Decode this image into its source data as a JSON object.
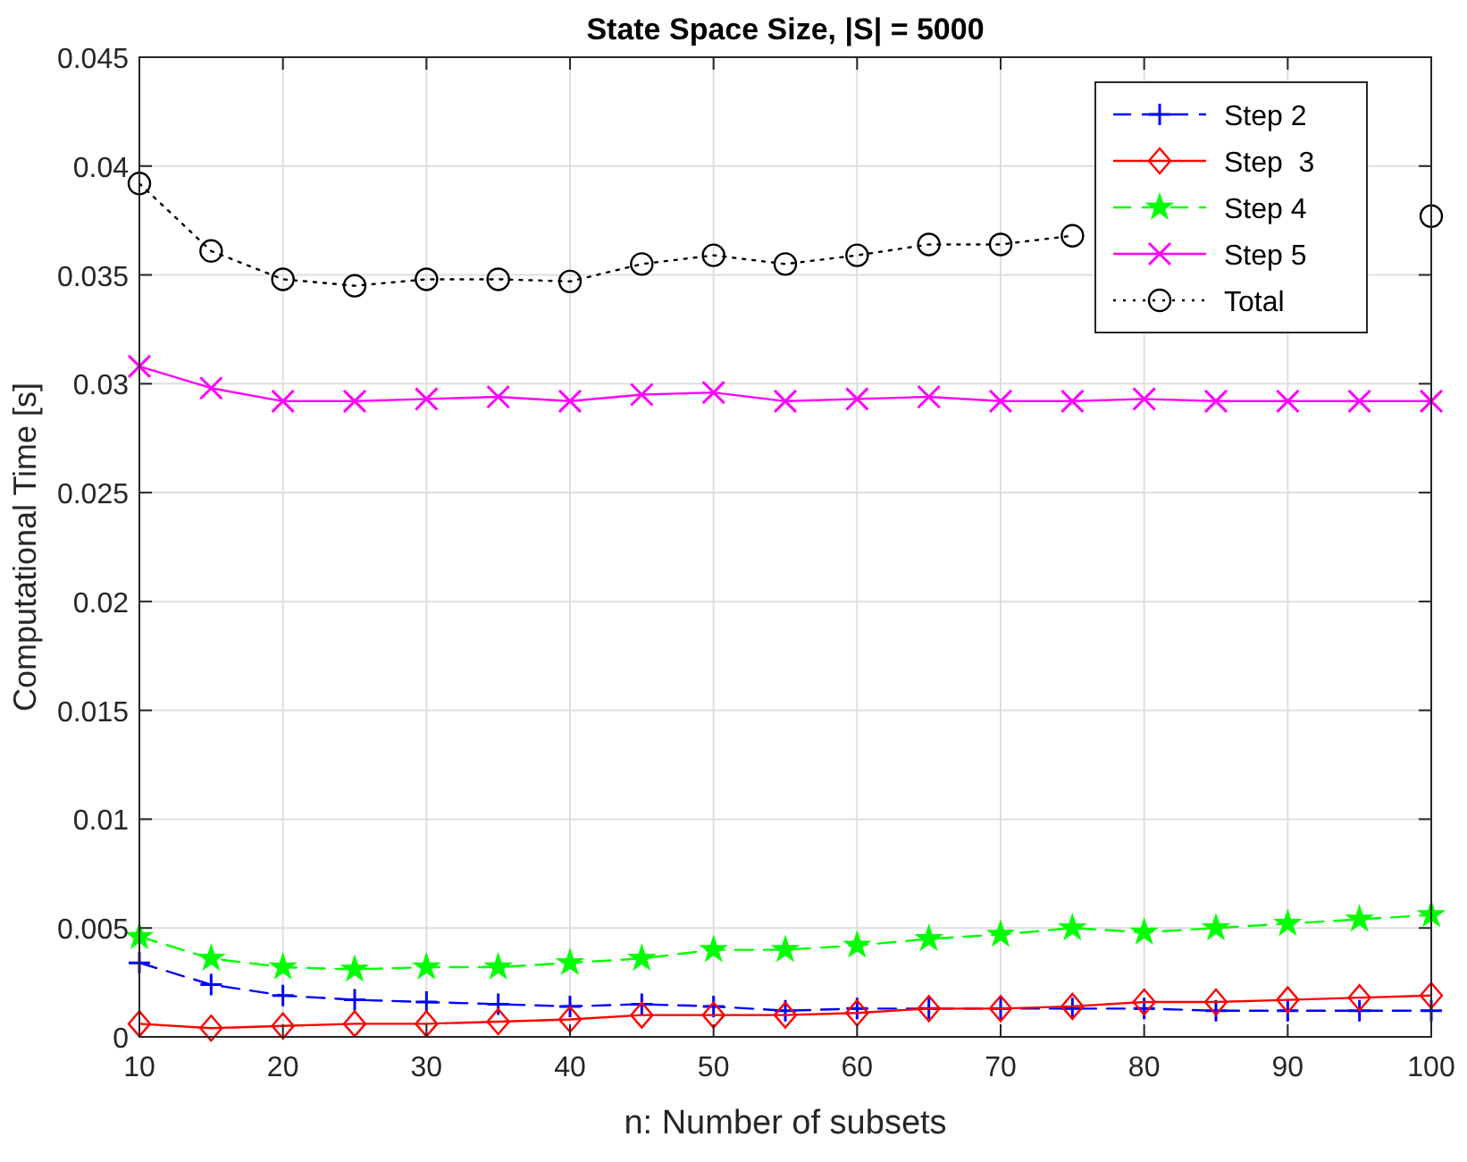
{
  "chart_data": {
    "type": "line",
    "title": "State Space Size, |S| =  5000",
    "xlabel": "n: Number of subsets",
    "ylabel": "Computational Time [s]",
    "x": [
      10,
      15,
      20,
      25,
      30,
      35,
      40,
      45,
      50,
      55,
      60,
      65,
      70,
      75,
      80,
      85,
      90,
      95,
      100
    ],
    "xlim": [
      10,
      100
    ],
    "xticks": [
      10,
      20,
      30,
      40,
      50,
      60,
      70,
      80,
      90,
      100
    ],
    "ylim": [
      0,
      0.045
    ],
    "yticks": [
      0,
      0.005,
      0.01,
      0.015,
      0.02,
      0.025,
      0.03,
      0.035,
      0.04,
      0.045
    ],
    "grid": true,
    "legend": "top right",
    "series": [
      {
        "name": "Step 2",
        "color": "#0000ff",
        "marker": "plus",
        "line_style": "dashed",
        "values": [
          0.0034,
          0.0024,
          0.0019,
          0.0017,
          0.0016,
          0.0015,
          0.0014,
          0.0015,
          0.0014,
          0.0012,
          0.0013,
          0.0013,
          0.0013,
          0.0013,
          0.0013,
          0.0012,
          0.0012,
          0.0012,
          0.0012
        ]
      },
      {
        "name": "Step  3",
        "color": "#ff0000",
        "marker": "diamond",
        "line_style": "solid",
        "values": [
          0.0006,
          0.0004,
          0.0005,
          0.0006,
          0.0006,
          0.0007,
          0.0008,
          0.001,
          0.001,
          0.001,
          0.0011,
          0.0013,
          0.0013,
          0.0014,
          0.0016,
          0.0016,
          0.0017,
          0.0018,
          0.0019
        ]
      },
      {
        "name": "Step 4",
        "color": "#00ff00",
        "marker": "star",
        "line_style": "dashed",
        "values": [
          0.0046,
          0.0036,
          0.0032,
          0.0031,
          0.0032,
          0.0032,
          0.0034,
          0.0036,
          0.004,
          0.004,
          0.0042,
          0.0045,
          0.0047,
          0.005,
          0.0048,
          0.005,
          0.0052,
          0.0054,
          0.0056
        ]
      },
      {
        "name": "Step 5",
        "color": "#ff00ff",
        "marker": "cross",
        "line_style": "solid",
        "values": [
          0.0308,
          0.0298,
          0.0292,
          0.0292,
          0.0293,
          0.0294,
          0.0292,
          0.0295,
          0.0296,
          0.0292,
          0.0293,
          0.0294,
          0.0292,
          0.0292,
          0.0293,
          0.0292,
          0.0292,
          0.0292,
          0.0292
        ]
      },
      {
        "name": "Total",
        "color": "#000000",
        "marker": "circle",
        "line_style": "dotted",
        "values": [
          0.0392,
          0.0361,
          0.0348,
          0.0345,
          0.0348,
          0.0348,
          0.0347,
          0.0355,
          0.0359,
          0.0355,
          0.0359,
          0.0364,
          0.0364,
          0.0368,
          null,
          null,
          null,
          null,
          0.0377
        ]
      }
    ]
  }
}
